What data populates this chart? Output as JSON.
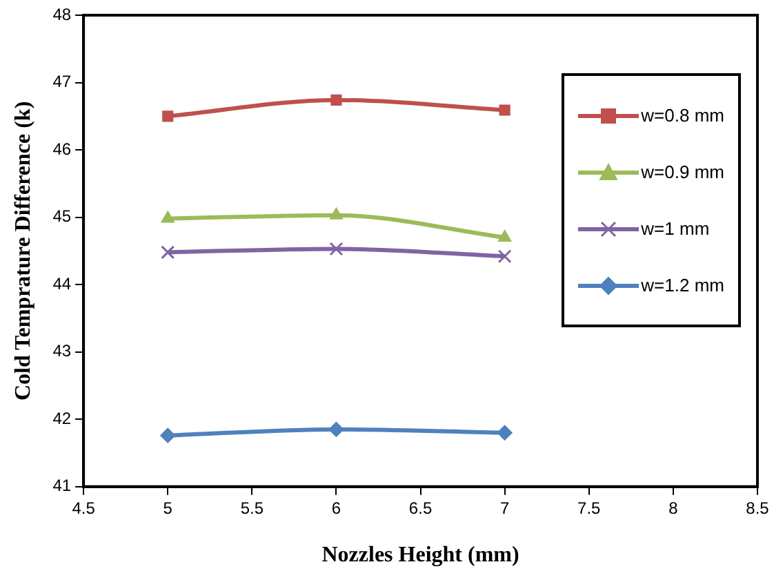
{
  "chart_data": {
    "type": "line",
    "xlabel": "Nozzles Height (mm)",
    "ylabel": "Cold Temprature Difference (k)",
    "x": [
      5,
      6,
      7
    ],
    "series": [
      {
        "name": "w=0.8 mm",
        "color": "#c0504d",
        "marker": "square",
        "values": [
          46.5,
          46.74,
          46.59
        ]
      },
      {
        "name": "w=0.9 mm",
        "color": "#9bbb59",
        "marker": "triangle",
        "values": [
          44.98,
          45.03,
          44.7
        ]
      },
      {
        "name": "w=1 mm",
        "color": "#8064a2",
        "marker": "cross",
        "values": [
          44.48,
          44.53,
          44.42
        ]
      },
      {
        "name": "w=1.2 mm",
        "color": "#4f81bd",
        "marker": "diamond",
        "values": [
          41.76,
          41.85,
          41.8
        ]
      }
    ],
    "xlim": [
      4.5,
      8.5
    ],
    "xticks": [
      4.5,
      5,
      5.5,
      6,
      6.5,
      7,
      7.5,
      8,
      8.5
    ],
    "ylim": [
      41,
      48
    ],
    "yticks": [
      41,
      42,
      43,
      44,
      45,
      46,
      47,
      48
    ],
    "grid": false,
    "legend": "top right",
    "line_style": "solid"
  }
}
